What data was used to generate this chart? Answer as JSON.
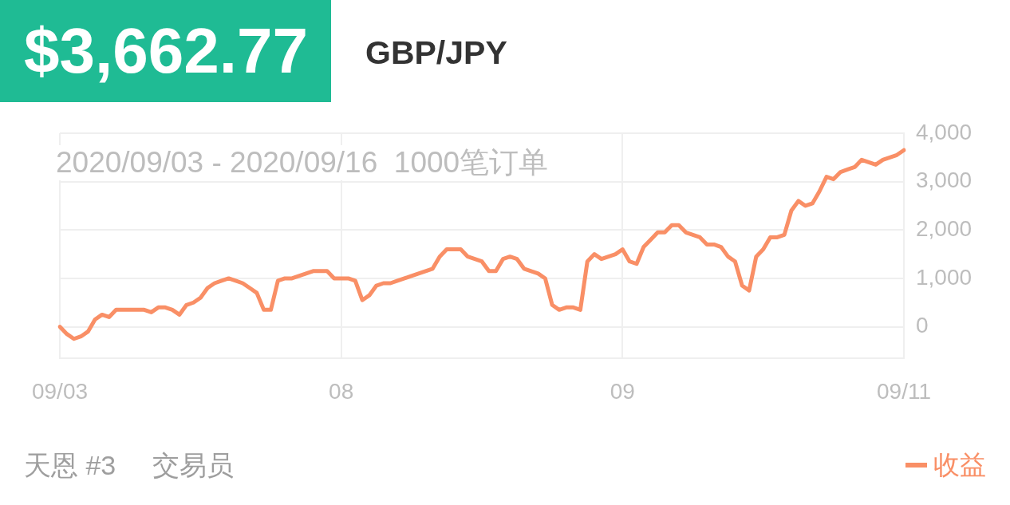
{
  "chart_data": {
    "type": "line",
    "title": "$3,662.77",
    "subtitle": "GBP/JPY",
    "annotations": [
      "2020/09/03 - 2020/09/16  1000笔订单",
      "天恩 #3",
      "交易员"
    ],
    "categories": [
      "09/03",
      null,
      null,
      null,
      null,
      null,
      null,
      null,
      null,
      null,
      null,
      null,
      null,
      null,
      null,
      null,
      null,
      null,
      null,
      null,
      null,
      null,
      null,
      null,
      null,
      null,
      null,
      null,
      null,
      null,
      null,
      null,
      null,
      null,
      null,
      null,
      null,
      null,
      null,
      null,
      "08",
      null,
      null,
      null,
      null,
      null,
      null,
      null,
      null,
      null,
      null,
      null,
      null,
      null,
      null,
      null,
      null,
      null,
      null,
      null,
      null,
      null,
      null,
      null,
      null,
      null,
      null,
      null,
      null,
      null,
      null,
      null,
      null,
      null,
      null,
      null,
      null,
      null,
      null,
      null,
      "09",
      null,
      null,
      null,
      null,
      null,
      null,
      null,
      null,
      null,
      null,
      null,
      null,
      null,
      null,
      null,
      null,
      null,
      null,
      null,
      null,
      null,
      null,
      null,
      null,
      null,
      null,
      null,
      null,
      null,
      null,
      null,
      null,
      null,
      null,
      null,
      null,
      null,
      null,
      null,
      "09/11"
    ],
    "series": [
      {
        "name": "收益",
        "color": "#f98f66",
        "values": [
          0,
          -150,
          -250,
          -200,
          -100,
          150,
          250,
          200,
          350,
          350,
          350,
          350,
          350,
          300,
          400,
          400,
          350,
          250,
          450,
          500,
          600,
          800,
          900,
          950,
          1000,
          950,
          900,
          800,
          700,
          350,
          350,
          950,
          1000,
          1000,
          1050,
          1100,
          1150,
          1150,
          1150,
          1000,
          1000,
          1000,
          950,
          550,
          650,
          850,
          900,
          900,
          950,
          1000,
          1050,
          1100,
          1150,
          1200,
          1450,
          1600,
          1600,
          1600,
          1450,
          1400,
          1350,
          1150,
          1150,
          1400,
          1450,
          1400,
          1200,
          1150,
          1100,
          1000,
          450,
          350,
          400,
          400,
          350,
          1350,
          1500,
          1400,
          1450,
          1500,
          1600,
          1350,
          1300,
          1650,
          1800,
          1950,
          1950,
          2100,
          2100,
          1950,
          1900,
          1850,
          1700,
          1700,
          1650,
          1450,
          1350,
          850,
          750,
          1450,
          1600,
          1850,
          1850,
          1900,
          2400,
          2600,
          2500,
          2550,
          2800,
          3100,
          3050,
          3200,
          3250,
          3300,
          3450,
          3400,
          3350,
          3450,
          3500,
          3550,
          3650
        ]
      }
    ],
    "ylim": [
      -650,
      4000
    ],
    "yticks": [
      0,
      {
        "value": 1000,
        "label": "1,000"
      },
      {
        "value": 2000,
        "label": "2,000"
      },
      {
        "value": 3000,
        "label": "3,000"
      },
      {
        "value": 4000,
        "label": "4,000"
      }
    ],
    "grid": true,
    "legend": "bottom right"
  }
}
